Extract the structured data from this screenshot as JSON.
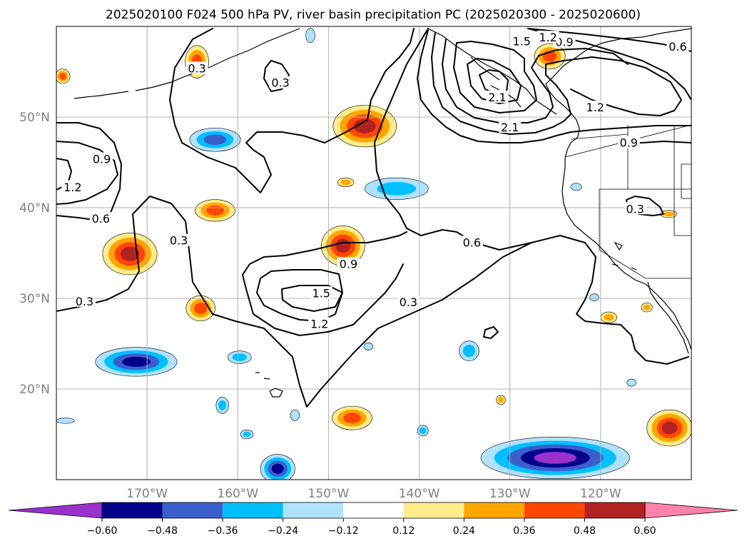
{
  "title": "2025020100 F024 500 hPa PV, river basin precipitation PC (2025020300 - 2025020600)",
  "map": {
    "projection": "PlateCarree",
    "lon_range": [
      -180,
      -110
    ],
    "lat_range": [
      10,
      60
    ],
    "gridlines": true,
    "lat_ticks": [
      {
        "value": 50,
        "label": "50°N"
      },
      {
        "value": 40,
        "label": "40°N"
      },
      {
        "value": 30,
        "label": "30°N"
      },
      {
        "value": 20,
        "label": "20°N"
      }
    ],
    "lon_ticks": [
      {
        "value": -170,
        "label": "170°W"
      },
      {
        "value": -160,
        "label": "160°W"
      },
      {
        "value": -150,
        "label": "150°W"
      },
      {
        "value": -140,
        "label": "140°W"
      },
      {
        "value": -130,
        "label": "130°W"
      },
      {
        "value": -120,
        "label": "120°W"
      }
    ]
  },
  "colorbar": {
    "orientation": "horizontal",
    "extend": "both",
    "levels": [
      -0.6,
      -0.48,
      -0.36,
      -0.24,
      -0.12,
      0.12,
      0.24,
      0.36,
      0.48,
      0.6
    ],
    "tick_labels": [
      "−0.60",
      "−0.48",
      "−0.36",
      "−0.24",
      "−0.12",
      "0.12",
      "0.24",
      "0.36",
      "0.48",
      "0.60"
    ],
    "colors": [
      "#9932cc",
      "#00008b",
      "#3a5fcd",
      "#00bfff",
      "#b0e2ff",
      "#ffffff",
      "#ffec8b",
      "#ffa500",
      "#ff4500",
      "#b22222",
      "#ff82ab"
    ]
  },
  "pv_contour_labels": [
    {
      "text": "0.3",
      "lon": -176.9,
      "lat": 29.7
    },
    {
      "text": "0.3",
      "lon": -166.5,
      "lat": 36.4
    },
    {
      "text": "0.3",
      "lon": -164.5,
      "lat": 55.4
    },
    {
      "text": "0.3",
      "lon": -155.3,
      "lat": 53.8
    },
    {
      "text": "0.3",
      "lon": -141.2,
      "lat": 29.6
    },
    {
      "text": "0.3",
      "lon": -116.2,
      "lat": 39.9
    },
    {
      "text": "0.6",
      "lon": -175.1,
      "lat": 38.8
    },
    {
      "text": "0.6",
      "lon": -134.2,
      "lat": 36.2
    },
    {
      "text": "0.6",
      "lon": -111.5,
      "lat": 57.8
    },
    {
      "text": "0.9",
      "lon": -175.0,
      "lat": 45.4
    },
    {
      "text": "0.9",
      "lon": -147.8,
      "lat": 33.8
    },
    {
      "text": "0.9",
      "lon": -116.9,
      "lat": 47.2
    },
    {
      "text": "0.9",
      "lon": -124.0,
      "lat": 58.3
    },
    {
      "text": "1.2",
      "lon": -178.2,
      "lat": 42.3
    },
    {
      "text": "1.2",
      "lon": -151.0,
      "lat": 27.2
    },
    {
      "text": "1.2",
      "lon": -120.6,
      "lat": 51.1
    },
    {
      "text": "1.2",
      "lon": -125.8,
      "lat": 58.8
    },
    {
      "text": "1.5",
      "lon": -150.8,
      "lat": 30.6
    },
    {
      "text": "1.5",
      "lon": -128.7,
      "lat": 58.4
    },
    {
      "text": "2.1",
      "lon": -131.4,
      "lat": 52.2
    },
    {
      "text": "2.1",
      "lon": -130.0,
      "lat": 48.9
    }
  ],
  "precip_pc_regions": [
    {
      "lon": -171.9,
      "lat": 34.9,
      "rx": 3.0,
      "ry": 2.3,
      "value": 0.5
    },
    {
      "lon": -164.1,
      "lat": 28.9,
      "rx": 1.6,
      "ry": 1.4,
      "value": 0.4
    },
    {
      "lon": -162.5,
      "lat": 39.7,
      "rx": 2.2,
      "ry": 1.2,
      "value": 0.4
    },
    {
      "lon": -148.4,
      "lat": 35.8,
      "rx": 2.4,
      "ry": 2.2,
      "value": 0.5
    },
    {
      "lon": -146.0,
      "lat": 49.0,
      "rx": 3.5,
      "ry": 2.3,
      "value": 0.5
    },
    {
      "lon": -164.5,
      "lat": 56.1,
      "rx": 1.3,
      "ry": 1.8,
      "value": 0.4
    },
    {
      "lon": -179.3,
      "lat": 54.5,
      "rx": 0.8,
      "ry": 0.8,
      "value": 0.4
    },
    {
      "lon": -125.6,
      "lat": 56.7,
      "rx": 1.7,
      "ry": 1.4,
      "value": 0.4
    },
    {
      "lon": -147.4,
      "lat": 16.8,
      "rx": 2.2,
      "ry": 1.3,
      "value": 0.4
    },
    {
      "lon": -131.0,
      "lat": 18.8,
      "rx": 0.5,
      "ry": 0.5,
      "value": 0.3
    },
    {
      "lon": -112.4,
      "lat": 15.7,
      "rx": 2.5,
      "ry": 2.0,
      "value": 0.5
    },
    {
      "lon": -114.9,
      "lat": 29.0,
      "rx": 0.6,
      "ry": 0.5,
      "value": 0.3
    },
    {
      "lon": -119.1,
      "lat": 27.9,
      "rx": 0.9,
      "ry": 0.6,
      "value": 0.3
    },
    {
      "lon": -148.1,
      "lat": 42.8,
      "rx": 0.9,
      "ry": 0.5,
      "value": 0.3
    },
    {
      "lon": -112.5,
      "lat": 39.3,
      "rx": 0.9,
      "ry": 0.4,
      "value": 0.3
    },
    {
      "lon": -162.5,
      "lat": 47.5,
      "rx": 2.8,
      "ry": 1.3,
      "value": -0.4
    },
    {
      "lon": -142.5,
      "lat": 42.1,
      "rx": 3.5,
      "ry": 1.2,
      "value": -0.3
    },
    {
      "lon": -171.2,
      "lat": 23.0,
      "rx": 4.5,
      "ry": 1.6,
      "value": -0.5
    },
    {
      "lon": -159.8,
      "lat": 23.5,
      "rx": 1.3,
      "ry": 0.7,
      "value": -0.3
    },
    {
      "lon": -159.0,
      "lat": 15.0,
      "rx": 0.7,
      "ry": 0.5,
      "value": -0.3
    },
    {
      "lon": -161.7,
      "lat": 18.2,
      "rx": 0.7,
      "ry": 0.9,
      "value": -0.3
    },
    {
      "lon": -155.6,
      "lat": 11.2,
      "rx": 1.9,
      "ry": 1.6,
      "value": -0.5
    },
    {
      "lon": -153.7,
      "lat": 17.1,
      "rx": 0.5,
      "ry": 0.6,
      "value": -0.2
    },
    {
      "lon": -134.5,
      "lat": 24.2,
      "rx": 1.1,
      "ry": 1.1,
      "value": -0.3
    },
    {
      "lon": -125.0,
      "lat": 12.4,
      "rx": 8.2,
      "ry": 2.3,
      "value": -0.6
    },
    {
      "lon": -139.6,
      "lat": 15.4,
      "rx": 0.6,
      "ry": 0.6,
      "value": -0.3
    },
    {
      "lon": -179.0,
      "lat": 16.5,
      "rx": 1.0,
      "ry": 0.3,
      "value": -0.2
    },
    {
      "lon": -122.7,
      "lat": 42.3,
      "rx": 0.6,
      "ry": 0.4,
      "value": -0.2
    },
    {
      "lon": -120.7,
      "lat": 30.1,
      "rx": 0.5,
      "ry": 0.4,
      "value": -0.2
    },
    {
      "lon": -116.6,
      "lat": 20.7,
      "rx": 0.5,
      "ry": 0.4,
      "value": -0.2
    },
    {
      "lon": -145.6,
      "lat": 24.7,
      "rx": 0.5,
      "ry": 0.4,
      "value": -0.2
    },
    {
      "lon": -152.0,
      "lat": 59.0,
      "rx": 0.5,
      "ry": 0.8,
      "value": -0.2
    }
  ]
}
